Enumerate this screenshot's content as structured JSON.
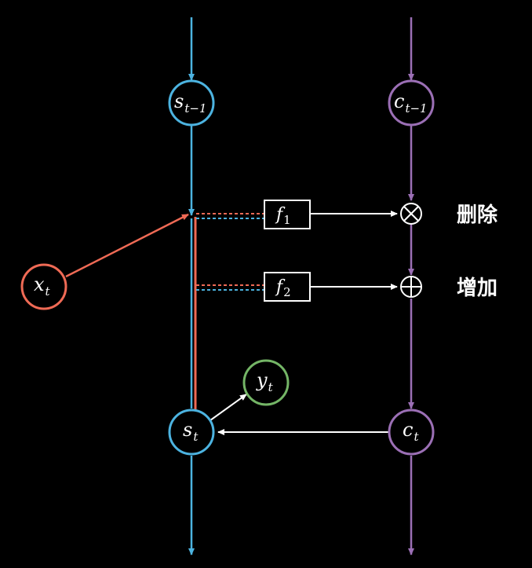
{
  "colors": {
    "background": "#000000",
    "state_line": "#4cb3e0",
    "cell_line": "#9b6fb5",
    "input": "#ef6a55",
    "output": "#74b566",
    "white": "#ffffff"
  },
  "nodes": {
    "s_prev": {
      "base": "s",
      "sub": "t−1"
    },
    "c_prev": {
      "base": "c",
      "sub": "t−1"
    },
    "x_t": {
      "base": "x",
      "sub": "t"
    },
    "y_t": {
      "base": "y",
      "sub": "t"
    },
    "s_t": {
      "base": "s",
      "sub": "t"
    },
    "c_t": {
      "base": "c",
      "sub": "t"
    }
  },
  "gates": {
    "f1": {
      "base": "f",
      "sub": "1"
    },
    "f2": {
      "base": "f",
      "sub": "2"
    }
  },
  "operators": {
    "multiply_symbol": "⊗",
    "add_symbol": "⊕"
  },
  "labels": {
    "delete": "删除",
    "add": "增加"
  }
}
